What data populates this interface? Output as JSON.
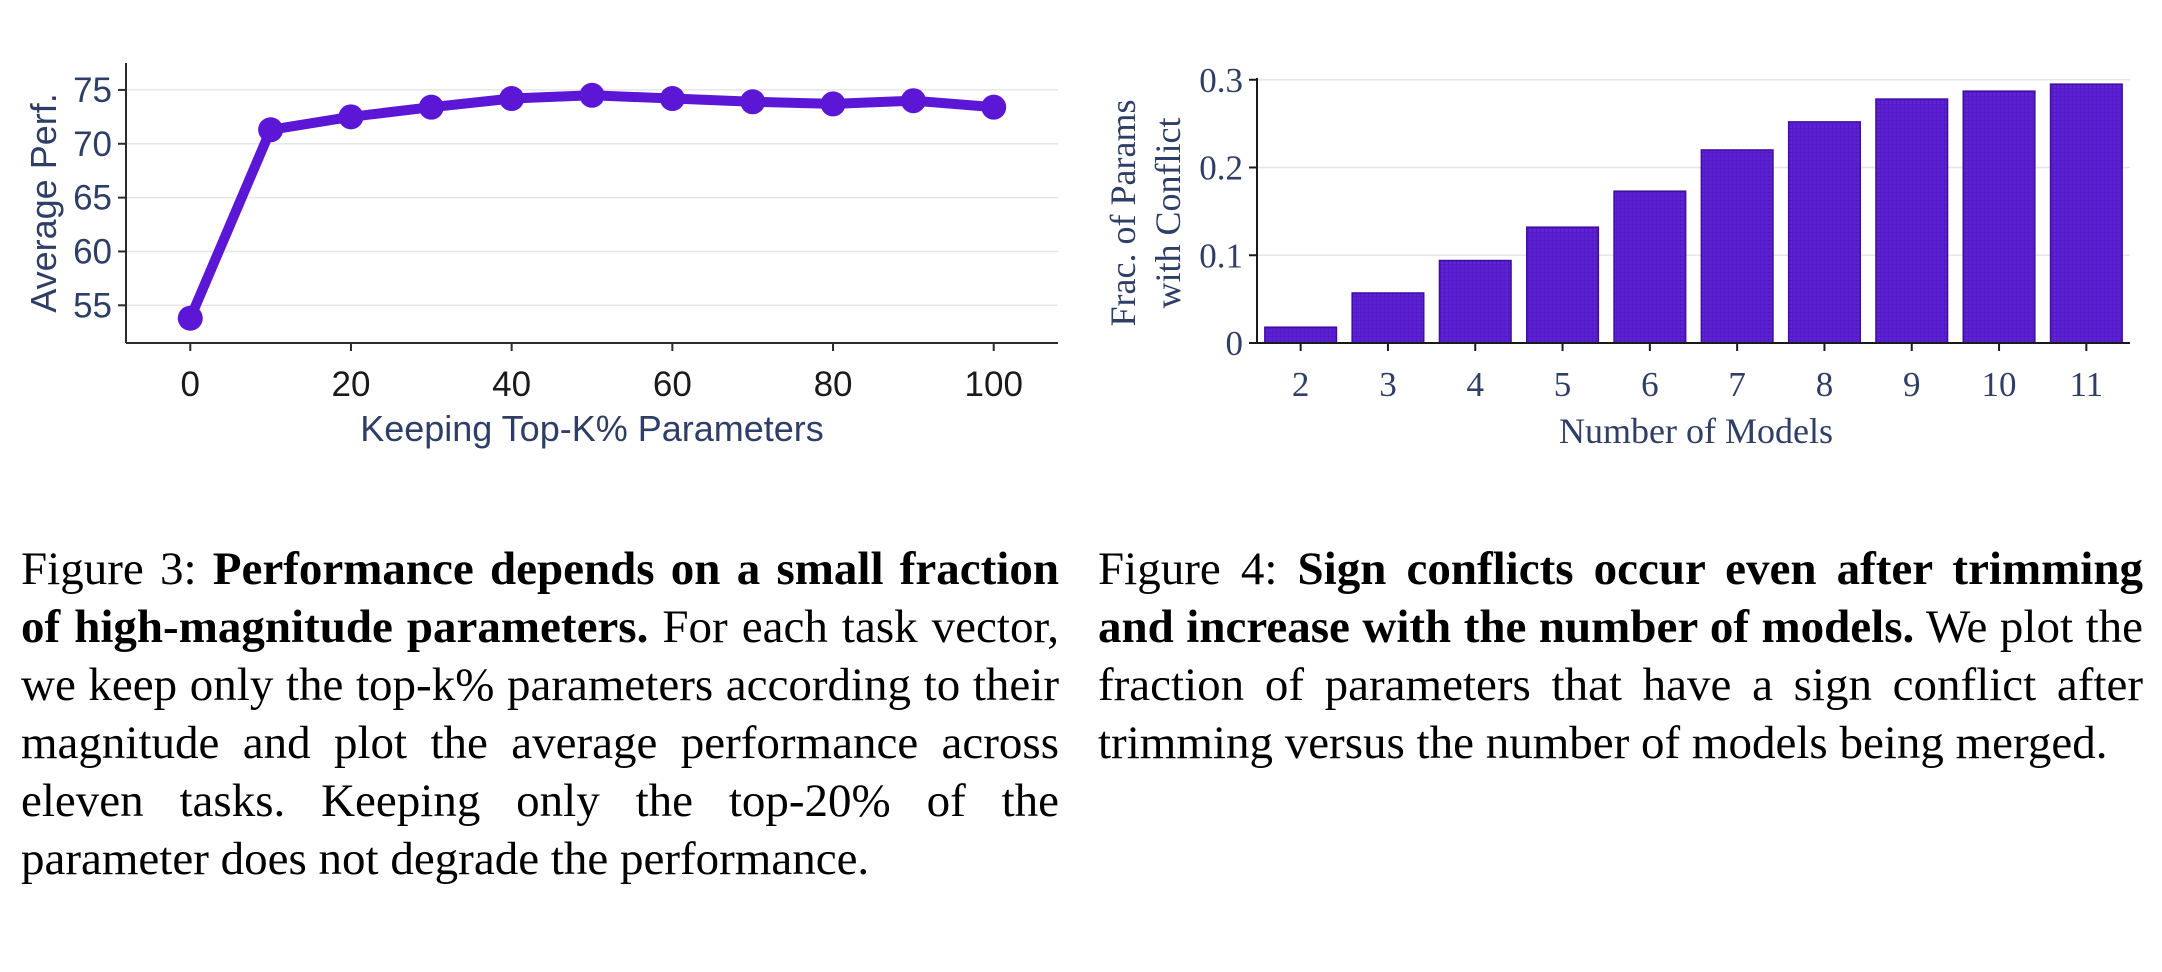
{
  "colors": {
    "accent": "#5b16d6",
    "bar_fill": "#5d22d6",
    "bar_edge": "#3f0f9c",
    "axis_text": "#2e3e66",
    "grid": "#e6e6e6"
  },
  "chart_data": [
    {
      "type": "line",
      "title": "",
      "xlabel": "Keeping Top-K% Parameters",
      "ylabel": "Average Perf.",
      "x": [
        0,
        10,
        20,
        30,
        40,
        50,
        60,
        70,
        80,
        90,
        100
      ],
      "series": [
        {
          "values": [
            53.8,
            71.3,
            72.5,
            73.4,
            74.2,
            74.5,
            74.2,
            73.9,
            73.7,
            74.0,
            73.4
          ]
        }
      ],
      "xticks": [
        "0",
        "20",
        "40",
        "60",
        "80",
        "100"
      ],
      "yticks": [
        "55",
        "60",
        "65",
        "70",
        "75"
      ],
      "xlim": [
        -8,
        108
      ],
      "ylim": [
        51.5,
        77.5
      ],
      "grid": "horizontal",
      "legend": "none"
    },
    {
      "type": "bar",
      "title": "",
      "xlabel": "Number of Models",
      "ylabel": "Frac. of Params with Conflict",
      "ylabel_lines": [
        "Frac. of Params",
        "with Conflict"
      ],
      "categories": [
        "2",
        "3",
        "4",
        "5",
        "6",
        "7",
        "8",
        "9",
        "10",
        "11"
      ],
      "values": [
        0.018,
        0.057,
        0.094,
        0.132,
        0.173,
        0.22,
        0.252,
        0.278,
        0.287,
        0.295
      ],
      "yticks": [
        "0",
        "0.1",
        "0.2",
        "0.3"
      ],
      "ylim": [
        0,
        0.302
      ],
      "grid": "horizontal",
      "legend": "none"
    }
  ],
  "captions": {
    "fig3": {
      "label": "Figure 3: ",
      "bold": "Performance depends on a small frac­tion of high-magnitude parameters.",
      "text": " For each task vector, we keep only the top-k% parameters according to their magnitude and plot the average performance across eleven tasks. Keeping only the top-20% of the parameter does not degrade the performance."
    },
    "fig4": {
      "label": "Figure 4: ",
      "bold": "Sign conflicts occur even after trim­ming and increase with the number of models.",
      "text": " We plot the fraction of parameters that have a sign conflict after trimming versus the number of mod­els being merged."
    }
  }
}
